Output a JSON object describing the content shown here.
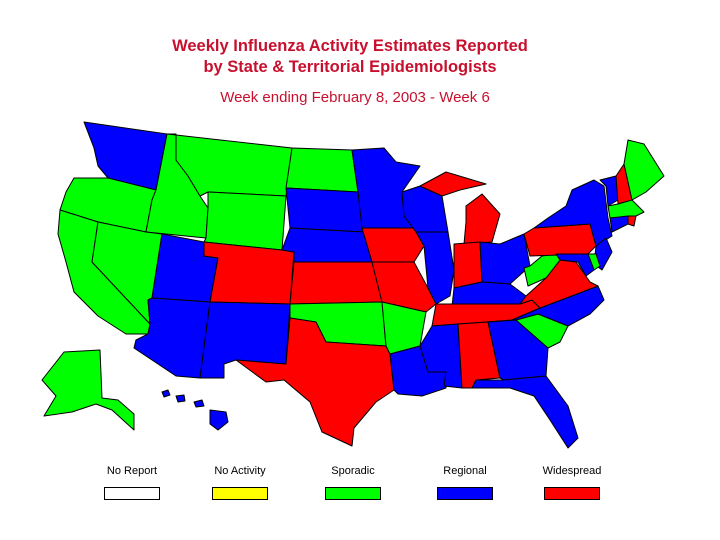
{
  "title": {
    "line1": "Weekly Influenza Activity Estimates Reported",
    "line2": "by State & Territorial Epidemiologists",
    "subtitle": "Week ending February 8, 2003 - Week 6"
  },
  "legend": [
    {
      "label": "No Report",
      "color": "#ffffff"
    },
    {
      "label": "No Activity",
      "color": "#ffff00"
    },
    {
      "label": "Sporadic",
      "color": "#00ff00"
    },
    {
      "label": "Regional",
      "color": "#0000ff"
    },
    {
      "label": "Widespread",
      "color": "#ff0000"
    }
  ],
  "colors": {
    "No Report": "#ffffff",
    "No Activity": "#ffff00",
    "Sporadic": "#00ff00",
    "Regional": "#0000ff",
    "Widespread": "#ff0000"
  },
  "states": [
    {
      "id": "WA",
      "activity": "Regional"
    },
    {
      "id": "OR",
      "activity": "Sporadic"
    },
    {
      "id": "CA",
      "activity": "Sporadic"
    },
    {
      "id": "ID",
      "activity": "Sporadic"
    },
    {
      "id": "NV",
      "activity": "Sporadic"
    },
    {
      "id": "MT",
      "activity": "Sporadic"
    },
    {
      "id": "WY",
      "activity": "Sporadic"
    },
    {
      "id": "UT",
      "activity": "Regional"
    },
    {
      "id": "AZ",
      "activity": "Regional"
    },
    {
      "id": "CO",
      "activity": "Widespread"
    },
    {
      "id": "NM",
      "activity": "Regional"
    },
    {
      "id": "ND",
      "activity": "Sporadic"
    },
    {
      "id": "SD",
      "activity": "Regional"
    },
    {
      "id": "NE",
      "activity": "Regional"
    },
    {
      "id": "KS",
      "activity": "Widespread"
    },
    {
      "id": "OK",
      "activity": "Sporadic"
    },
    {
      "id": "TX",
      "activity": "Widespread"
    },
    {
      "id": "MN",
      "activity": "Regional"
    },
    {
      "id": "IA",
      "activity": "Widespread"
    },
    {
      "id": "MO",
      "activity": "Widespread"
    },
    {
      "id": "AR",
      "activity": "Sporadic"
    },
    {
      "id": "LA",
      "activity": "Regional"
    },
    {
      "id": "WI",
      "activity": "Regional"
    },
    {
      "id": "IL",
      "activity": "Regional"
    },
    {
      "id": "MI",
      "activity": "Widespread"
    },
    {
      "id": "IN",
      "activity": "Widespread"
    },
    {
      "id": "OH",
      "activity": "Regional"
    },
    {
      "id": "KY",
      "activity": "Regional"
    },
    {
      "id": "TN",
      "activity": "Widespread"
    },
    {
      "id": "MS",
      "activity": "Regional"
    },
    {
      "id": "AL",
      "activity": "Widespread"
    },
    {
      "id": "GA",
      "activity": "Regional"
    },
    {
      "id": "FL",
      "activity": "Regional"
    },
    {
      "id": "SC",
      "activity": "Sporadic"
    },
    {
      "id": "NC",
      "activity": "Regional"
    },
    {
      "id": "VA",
      "activity": "Widespread"
    },
    {
      "id": "WV",
      "activity": "Sporadic"
    },
    {
      "id": "PA",
      "activity": "Widespread"
    },
    {
      "id": "NY",
      "activity": "Regional"
    },
    {
      "id": "VT",
      "activity": "Regional"
    },
    {
      "id": "NH",
      "activity": "Widespread"
    },
    {
      "id": "ME",
      "activity": "Sporadic"
    },
    {
      "id": "MA",
      "activity": "Sporadic"
    },
    {
      "id": "CT",
      "activity": "Regional"
    },
    {
      "id": "RI",
      "activity": "Widespread"
    },
    {
      "id": "NJ",
      "activity": "Regional"
    },
    {
      "id": "DE",
      "activity": "Sporadic"
    },
    {
      "id": "MD",
      "activity": "Regional"
    },
    {
      "id": "AK",
      "activity": "Sporadic"
    },
    {
      "id": "HI",
      "activity": "Regional"
    }
  ]
}
